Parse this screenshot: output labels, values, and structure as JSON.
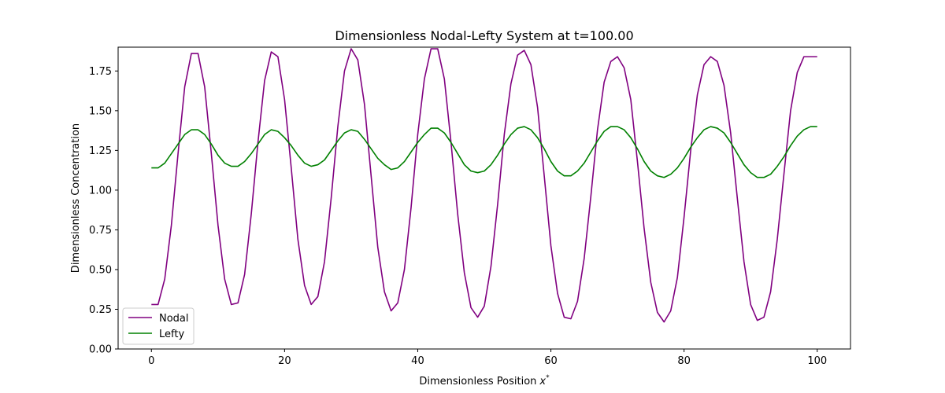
{
  "chart_data": {
    "type": "line",
    "title": "Dimensionless Nodal-Lefty System at t=100.00",
    "xlabel_main": "Dimensionless Position",
    "xlabel_var": "x",
    "xlabel_sup": "*",
    "ylabel": "Dimensionless Concentration",
    "xlim": [
      -5,
      105
    ],
    "ylim": [
      0.0,
      1.9
    ],
    "x_ticks": [
      0,
      20,
      40,
      60,
      80,
      100
    ],
    "x_tick_labels": [
      "0",
      "20",
      "40",
      "60",
      "80",
      "100"
    ],
    "y_ticks": [
      0.0,
      0.25,
      0.5,
      0.75,
      1.0,
      1.25,
      1.5,
      1.75
    ],
    "y_tick_labels": [
      "0.00",
      "0.25",
      "0.50",
      "0.75",
      "1.00",
      "1.25",
      "1.50",
      "1.75"
    ],
    "grid": false,
    "legend_position": "lower-left",
    "x": [
      0,
      1,
      2,
      3,
      4,
      5,
      6,
      7,
      8,
      9,
      10,
      11,
      12,
      13,
      14,
      15,
      16,
      17,
      18,
      19,
      20,
      21,
      22,
      23,
      24,
      25,
      26,
      27,
      28,
      29,
      30,
      31,
      32,
      33,
      34,
      35,
      36,
      37,
      38,
      39,
      40,
      41,
      42,
      43,
      44,
      45,
      46,
      47,
      48,
      49,
      50,
      51,
      52,
      53,
      54,
      55,
      56,
      57,
      58,
      59,
      60,
      61,
      62,
      63,
      64,
      65,
      66,
      67,
      68,
      69,
      70,
      71,
      72,
      73,
      74,
      75,
      76,
      77,
      78,
      79,
      80,
      81,
      82,
      83,
      84,
      85,
      86,
      87,
      88,
      89,
      90,
      91,
      92,
      93,
      94,
      95,
      96,
      97,
      98,
      99,
      100
    ],
    "series": [
      {
        "name": "Nodal",
        "color": "#800080",
        "values": [
          0.28,
          0.28,
          0.44,
          0.78,
          1.23,
          1.65,
          1.86,
          1.86,
          1.65,
          1.23,
          0.78,
          0.44,
          0.28,
          0.29,
          0.47,
          0.85,
          1.3,
          1.69,
          1.87,
          1.84,
          1.57,
          1.14,
          0.69,
          0.4,
          0.28,
          0.33,
          0.55,
          0.95,
          1.4,
          1.75,
          1.89,
          1.82,
          1.54,
          1.09,
          0.64,
          0.36,
          0.24,
          0.29,
          0.5,
          0.89,
          1.35,
          1.7,
          1.89,
          1.89,
          1.7,
          1.3,
          0.85,
          0.48,
          0.26,
          0.2,
          0.27,
          0.52,
          0.91,
          1.35,
          1.67,
          1.85,
          1.88,
          1.79,
          1.52,
          1.09,
          0.65,
          0.35,
          0.2,
          0.19,
          0.3,
          0.57,
          0.96,
          1.38,
          1.68,
          1.81,
          1.84,
          1.77,
          1.57,
          1.18,
          0.76,
          0.42,
          0.23,
          0.17,
          0.24,
          0.45,
          0.83,
          1.25,
          1.6,
          1.79,
          1.84,
          1.81,
          1.66,
          1.36,
          0.95,
          0.55,
          0.28,
          0.18,
          0.2,
          0.36,
          0.69,
          1.1,
          1.5,
          1.74,
          1.84,
          1.84,
          1.84
        ]
      },
      {
        "name": "Lefty",
        "color": "#008000",
        "values": [
          1.14,
          1.14,
          1.17,
          1.23,
          1.29,
          1.35,
          1.38,
          1.38,
          1.35,
          1.29,
          1.22,
          1.17,
          1.15,
          1.15,
          1.18,
          1.23,
          1.29,
          1.35,
          1.38,
          1.37,
          1.33,
          1.28,
          1.22,
          1.17,
          1.15,
          1.16,
          1.19,
          1.25,
          1.31,
          1.36,
          1.38,
          1.37,
          1.32,
          1.26,
          1.2,
          1.16,
          1.13,
          1.14,
          1.18,
          1.24,
          1.3,
          1.35,
          1.39,
          1.39,
          1.36,
          1.3,
          1.23,
          1.16,
          1.12,
          1.11,
          1.12,
          1.16,
          1.22,
          1.29,
          1.35,
          1.39,
          1.4,
          1.38,
          1.33,
          1.26,
          1.18,
          1.12,
          1.09,
          1.09,
          1.12,
          1.17,
          1.24,
          1.31,
          1.37,
          1.4,
          1.4,
          1.38,
          1.33,
          1.26,
          1.18,
          1.12,
          1.09,
          1.08,
          1.1,
          1.14,
          1.2,
          1.27,
          1.33,
          1.38,
          1.4,
          1.39,
          1.36,
          1.3,
          1.23,
          1.16,
          1.11,
          1.08,
          1.08,
          1.1,
          1.15,
          1.21,
          1.28,
          1.34,
          1.38,
          1.4,
          1.4
        ]
      }
    ]
  }
}
